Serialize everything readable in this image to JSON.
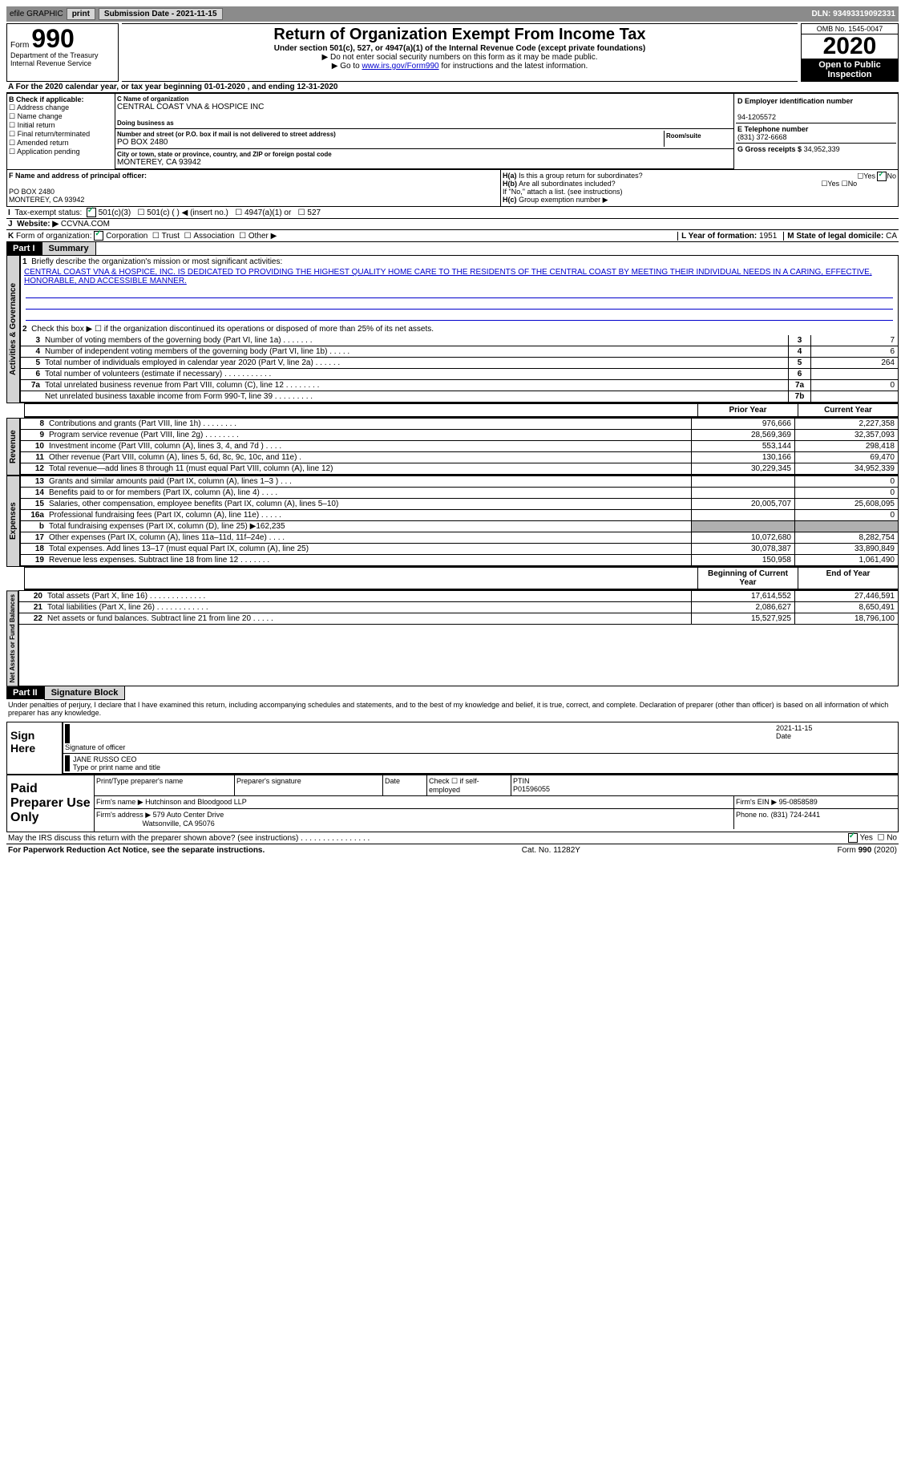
{
  "topbar": {
    "efile": "efile GRAPHIC",
    "print": "print",
    "submission": "Submission Date - 2021-11-15",
    "dln": "DLN: 93493319092331"
  },
  "header": {
    "form": "Form",
    "num": "990",
    "dept": "Department of the Treasury Internal Revenue Service",
    "title": "Return of Organization Exempt From Income Tax",
    "sub1": "Under section 501(c), 527, or 4947(a)(1) of the Internal Revenue Code (except private foundations)",
    "sub2": "▶ Do not enter social security numbers on this form as it may be made public.",
    "sub3a": "▶ Go to ",
    "sub3link": "www.irs.gov/Form990",
    "sub3b": " for instructions and the latest information.",
    "omb": "OMB No. 1545-0047",
    "year": "2020",
    "inspection": "Open to Public Inspection"
  },
  "lineA": "For the 2020 calendar year, or tax year beginning 01-01-2020    , and ending 12-31-2020",
  "sectionB": {
    "header": "B Check if applicable:",
    "items": [
      "Address change",
      "Name change",
      "Initial return",
      "Final return/terminated",
      "Amended return",
      "Application pending"
    ]
  },
  "sectionC": {
    "name_label": "C Name of organization",
    "name": "CENTRAL COAST VNA & HOSPICE INC",
    "dba_label": "Doing business as",
    "addr_label": "Number and street (or P.O. box if mail is not delivered to street address)",
    "room_label": "Room/suite",
    "addr": "PO BOX 2480",
    "city_label": "City or town, state or province, country, and ZIP or foreign postal code",
    "city": "MONTEREY, CA  93942"
  },
  "sectionD": {
    "label": "D Employer identification number",
    "value": "94-1205572"
  },
  "sectionE": {
    "label": "E Telephone number",
    "value": "(831) 372-6668"
  },
  "sectionG": {
    "label": "G Gross receipts $",
    "value": "34,952,339"
  },
  "sectionF": {
    "label": "F  Name and address of principal officer:",
    "addr1": "PO BOX 2480",
    "addr2": "MONTEREY, CA  93942"
  },
  "sectionH": {
    "a": "Is this a group return for subordinates?",
    "b": "Are all subordinates included?",
    "note": "If \"No,\" attach a list. (see instructions)",
    "c": "Group exemption number ▶",
    "yes": "Yes",
    "no": "No"
  },
  "sectionI": {
    "label": "Tax-exempt status:",
    "opts": [
      "501(c)(3)",
      "501(c) (  ) ◀ (insert no.)",
      "4947(a)(1) or",
      "527"
    ]
  },
  "sectionJ": {
    "label": "Website: ▶",
    "value": "CCVNA.COM"
  },
  "sectionK": {
    "label": "Form of organization:",
    "opts": [
      "Corporation",
      "Trust",
      "Association",
      "Other ▶"
    ]
  },
  "sectionL": {
    "label": "L Year of formation:",
    "value": "1951"
  },
  "sectionM": {
    "label": "M State of legal domicile:",
    "value": "CA"
  },
  "part1": {
    "header": "Part I",
    "title": "Summary",
    "vert1": "Activities & Governance",
    "line1_label": "Briefly describe the organization's mission or most significant activities:",
    "mission": "CENTRAL COAST VNA & HOSPICE, INC. IS DEDICATED TO PROVIDING THE HIGHEST QUALITY HOME CARE TO THE RESIDENTS OF THE CENTRAL COAST BY MEETING THEIR INDIVIDUAL NEEDS IN A CARING, EFFECTIVE, HONORABLE, AND ACCESSIBLE MANNER.",
    "line2": "Check this box ▶ ☐  if the organization discontinued its operations or disposed of more than 25% of its net assets.",
    "rows": [
      {
        "n": "3",
        "label": "Number of voting members of the governing body (Part VI, line 1a)   .    .    .    .    .    .    .",
        "box": "3",
        "val": "7"
      },
      {
        "n": "4",
        "label": "Number of independent voting members of the governing body (Part VI, line 1b)   .    .    .    .    .",
        "box": "4",
        "val": "6"
      },
      {
        "n": "5",
        "label": "Total number of individuals employed in calendar year 2020 (Part V, line 2a)   .    .    .    .    .    .",
        "box": "5",
        "val": "264"
      },
      {
        "n": "6",
        "label": "Total number of volunteers (estimate if necessary)   .    .    .    .    .    .    .    .    .    .    .",
        "box": "6",
        "val": ""
      },
      {
        "n": "7a",
        "label": "Total unrelated business revenue from Part VIII, column (C), line 12   .    .    .    .    .    .    .    .",
        "box": "7a",
        "val": "0"
      },
      {
        "n": "",
        "label": "Net unrelated business taxable income from Form 990-T, line 39   .    .    .    .    .    .    .    .    .",
        "box": "7b",
        "val": ""
      }
    ],
    "prior_header": "Prior Year",
    "curr_header": "Current Year",
    "vert2": "Revenue",
    "revenue": [
      {
        "n": "8",
        "label": "Contributions and grants (Part VIII, line 1h)   .    .    .    .    .    .    .    .",
        "prior": "976,666",
        "curr": "2,227,358"
      },
      {
        "n": "9",
        "label": "Program service revenue (Part VIII, line 2g)  .    .    .    .    .    .    .    .",
        "prior": "28,569,369",
        "curr": "32,357,093"
      },
      {
        "n": "10",
        "label": "Investment income (Part VIII, column (A), lines 3, 4, and 7d )   .    .    .    .",
        "prior": "553,144",
        "curr": "298,418"
      },
      {
        "n": "11",
        "label": "Other revenue (Part VIII, column (A), lines 5, 6d, 8c, 9c, 10c, and 11e)   .",
        "prior": "130,166",
        "curr": "69,470"
      },
      {
        "n": "12",
        "label": "Total revenue—add lines 8 through 11 (must equal Part VIII, column (A), line 12)",
        "prior": "30,229,345",
        "curr": "34,952,339"
      }
    ],
    "vert3": "Expenses",
    "expenses": [
      {
        "n": "13",
        "label": "Grants and similar amounts paid (Part IX, column (A), lines 1–3 )   .    .    .",
        "prior": "",
        "curr": "0"
      },
      {
        "n": "14",
        "label": "Benefits paid to or for members (Part IX, column (A), line 4)   .    .    .    .",
        "prior": "",
        "curr": "0"
      },
      {
        "n": "15",
        "label": "Salaries, other compensation, employee benefits (Part IX, column (A), lines 5–10)",
        "prior": "20,005,707",
        "curr": "25,608,095"
      },
      {
        "n": "16a",
        "label": "Professional fundraising fees (Part IX, column (A), line 11e)   .    .    .    .    .",
        "prior": "",
        "curr": "0"
      },
      {
        "n": "b",
        "label": "Total fundraising expenses (Part IX, column (D), line 25) ▶162,235",
        "prior": "gray",
        "curr": "gray"
      },
      {
        "n": "17",
        "label": "Other expenses (Part IX, column (A), lines 11a–11d, 11f–24e)   .    .    .    .",
        "prior": "10,072,680",
        "curr": "8,282,754"
      },
      {
        "n": "18",
        "label": "Total expenses. Add lines 13–17 (must equal Part IX, column (A), line 25)",
        "prior": "30,078,387",
        "curr": "33,890,849"
      },
      {
        "n": "19",
        "label": "Revenue less expenses. Subtract line 18 from line 12  .    .    .    .    .    .    .",
        "prior": "150,958",
        "curr": "1,061,490"
      }
    ],
    "vert4": "Net Assets or Fund Balances",
    "begin_header": "Beginning of Current Year",
    "end_header": "End of Year",
    "netassets": [
      {
        "n": "20",
        "label": "Total assets (Part X, line 16)  .    .    .    .    .    .    .    .    .    .    .    .    .",
        "prior": "17,614,552",
        "curr": "27,446,591"
      },
      {
        "n": "21",
        "label": "Total liabilities (Part X, line 26)  .    .    .    .    .    .    .    .    .    .    .    .",
        "prior": "2,086,627",
        "curr": "8,650,491"
      },
      {
        "n": "22",
        "label": "Net assets or fund balances. Subtract line 21 from line 20  .    .    .    .    .",
        "prior": "15,527,925",
        "curr": "18,796,100"
      }
    ]
  },
  "part2": {
    "header": "Part II",
    "title": "Signature Block",
    "declaration": "Under penalties of perjury, I declare that I have examined this return, including accompanying schedules and statements, and to the best of my knowledge and belief, it is true, correct, and complete. Declaration of preparer (other than officer) is based on all information of which preparer has any knowledge.",
    "sign_here": "Sign Here",
    "sig_officer": "Signature of officer",
    "sig_date": "2021-11-15",
    "date_label": "Date",
    "officer_name": "JANE RUSSO CEO",
    "type_name": "Type or print name and title",
    "paid_prep": "Paid Preparer Use Only",
    "prep_headers": [
      "Print/Type preparer's name",
      "Preparer's signature",
      "Date"
    ],
    "check_if": "Check ☐ if self-employed",
    "ptin_label": "PTIN",
    "ptin": "P01596055",
    "firm_name_label": "Firm's name    ▶",
    "firm_name": "Hutchinson and Bloodgood LLP",
    "firm_ein_label": "Firm's EIN ▶",
    "firm_ein": "95-0858589",
    "firm_addr_label": "Firm's address ▶",
    "firm_addr1": "579 Auto Center Drive",
    "firm_addr2": "Watsonville, CA  95076",
    "phone_label": "Phone no.",
    "phone": "(831) 724-2441",
    "discuss": "May the IRS discuss this return with the preparer shown above? (see instructions)   .    .    .    .    .    .    .    .    .    .    .    .    .    .    .    .",
    "yes": "Yes",
    "no": "No"
  },
  "footer": {
    "left": "For Paperwork Reduction Act Notice, see the separate instructions.",
    "mid": "Cat. No. 11282Y",
    "right": "Form 990 (2020)"
  }
}
